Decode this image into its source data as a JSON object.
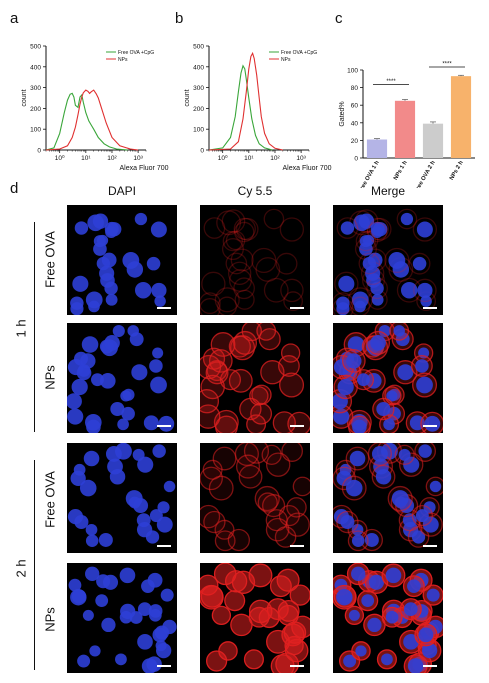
{
  "panels": {
    "a": "a",
    "b": "b",
    "c": "c",
    "d": "d"
  },
  "chart_data": [
    {
      "type": "line",
      "panel": "a",
      "ylabel": "count",
      "xlabel": "Alexa Fluor 700",
      "ylim": [
        0,
        500
      ],
      "yticks": [
        "0",
        "100",
        "200",
        "300",
        "400",
        "500"
      ],
      "xticks": [
        "10⁰",
        "10¹",
        "10²",
        "10³"
      ],
      "xlog": true,
      "xlim": [
        0.3,
        2000
      ],
      "legend": "top-right",
      "series": [
        {
          "name": "Free OVA +CpG",
          "color": "#3aa63a",
          "points": [
            [
              0.3,
              0
            ],
            [
              0.6,
              10
            ],
            [
              1,
              80
            ],
            [
              1.5,
              180
            ],
            [
              2,
              240
            ],
            [
              2.5,
              268
            ],
            [
              3,
              272
            ],
            [
              3.5,
              255
            ],
            [
              4,
              215
            ],
            [
              5,
              205
            ],
            [
              6,
              255
            ],
            [
              7,
              265
            ],
            [
              8,
              230
            ],
            [
              10,
              180
            ],
            [
              13,
              140
            ],
            [
              16,
              120
            ],
            [
              20,
              100
            ],
            [
              30,
              60
            ],
            [
              50,
              30
            ],
            [
              80,
              15
            ],
            [
              150,
              5
            ],
            [
              400,
              0
            ]
          ]
        },
        {
          "name": "NPs",
          "color": "#e03030",
          "points": [
            [
              0.3,
              0
            ],
            [
              1,
              5
            ],
            [
              2,
              20
            ],
            [
              3,
              60
            ],
            [
              4,
              110
            ],
            [
              5,
              170
            ],
            [
              6,
              220
            ],
            [
              7,
              255
            ],
            [
              8,
              275
            ],
            [
              10,
              288
            ],
            [
              12,
              282
            ],
            [
              14,
              272
            ],
            [
              16,
              280
            ],
            [
              20,
              288
            ],
            [
              25,
              270
            ],
            [
              30,
              250
            ],
            [
              40,
              200
            ],
            [
              60,
              130
            ],
            [
              100,
              60
            ],
            [
              200,
              20
            ],
            [
              500,
              5
            ],
            [
              1000,
              0
            ]
          ]
        }
      ]
    },
    {
      "type": "line",
      "panel": "b",
      "ylabel": "count",
      "xlabel": "Alexa Fluor 700",
      "ylim": [
        0,
        500
      ],
      "yticks": [
        "0",
        "100",
        "200",
        "300",
        "400",
        "500"
      ],
      "xticks": [
        "10⁰",
        "10¹",
        "10²",
        "10³"
      ],
      "xlog": true,
      "xlim": [
        0.3,
        2000
      ],
      "legend": "top-right",
      "series": [
        {
          "name": "Free OVA +CpG",
          "color": "#3aa63a",
          "points": [
            [
              0.3,
              0
            ],
            [
              1,
              10
            ],
            [
              2,
              60
            ],
            [
              3,
              160
            ],
            [
              4,
              280
            ],
            [
              5,
              370
            ],
            [
              6,
              405
            ],
            [
              7,
              390
            ],
            [
              8,
              340
            ],
            [
              10,
              250
            ],
            [
              13,
              150
            ],
            [
              18,
              70
            ],
            [
              25,
              30
            ],
            [
              40,
              10
            ],
            [
              80,
              0
            ]
          ]
        },
        {
          "name": "NPs",
          "color": "#e03030",
          "points": [
            [
              0.3,
              0
            ],
            [
              2,
              5
            ],
            [
              4,
              40
            ],
            [
              6,
              150
            ],
            [
              8,
              280
            ],
            [
              10,
              390
            ],
            [
              12,
              450
            ],
            [
              14,
              465
            ],
            [
              16,
              440
            ],
            [
              20,
              360
            ],
            [
              25,
              250
            ],
            [
              30,
              160
            ],
            [
              40,
              80
            ],
            [
              60,
              30
            ],
            [
              100,
              8
            ],
            [
              200,
              0
            ]
          ]
        }
      ]
    },
    {
      "type": "bar",
      "panel": "c",
      "ylabel": "Gated%",
      "ylim": [
        0,
        100
      ],
      "yticks": [
        "0",
        "20",
        "40",
        "60",
        "80",
        "100"
      ],
      "categories": [
        "Free OVA 1 h",
        "NPs 1 h",
        "Free OVA 2 h",
        "NPs 2 h"
      ],
      "values": [
        21,
        65,
        39,
        93
      ],
      "errors": [
        1,
        1.5,
        2,
        1
      ],
      "colors": [
        "#b4b4e6",
        "#f28a8a",
        "#cccccc",
        "#f7b26b"
      ],
      "significance": [
        {
          "from": 0,
          "to": 1,
          "label": "****",
          "y": 80
        },
        {
          "from": 2,
          "to": 3,
          "label": "****",
          "y": 100
        }
      ]
    }
  ],
  "microscopy": {
    "columns": [
      "DAPI",
      "Cy 5.5",
      "Merge"
    ],
    "time_groups": [
      "1 h",
      "2 h"
    ],
    "rows": [
      {
        "label": "Free OVA",
        "time": "1 h"
      },
      {
        "label": "NPs",
        "time": "1 h"
      },
      {
        "label": "Free OVA",
        "time": "2 h"
      },
      {
        "label": "NPs",
        "time": "2 h"
      }
    ],
    "colors": {
      "dapi": "#2d3fd6",
      "cy55": "#e02020",
      "background": "#000000"
    }
  }
}
